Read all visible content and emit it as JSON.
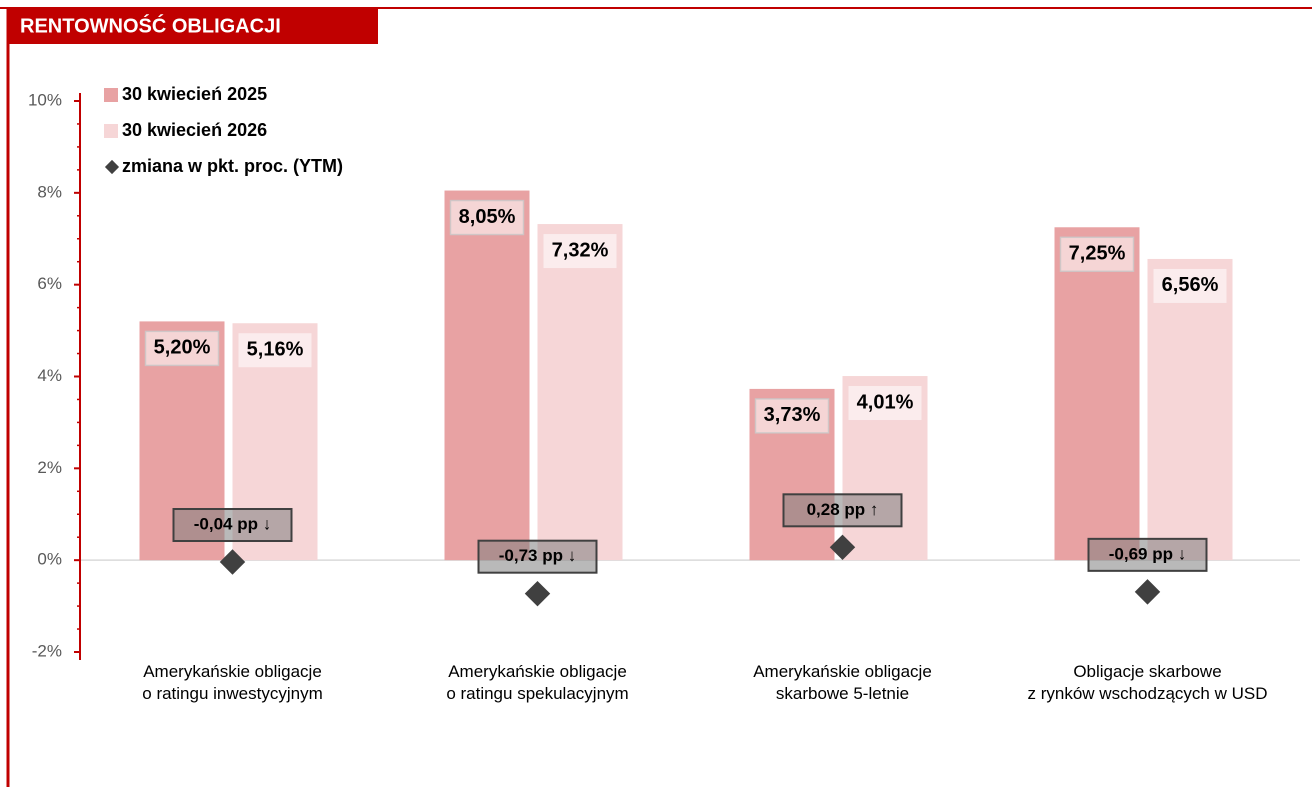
{
  "chart_data": {
    "type": "bar",
    "title": "RENTOWNOŚĆ OBLIGACJI",
    "categories": [
      [
        "Amerykańskie obligacje",
        "o ratingu inwestycyjnym"
      ],
      [
        "Amerykańskie obligacje",
        "o ratingu spekulacyjnym"
      ],
      [
        "Amerykańskie obligacje",
        "skarbowe 5-letnie"
      ],
      [
        "Obligacje skarbowe",
        "z rynków wschodzących w USD"
      ]
    ],
    "series": [
      {
        "name": "30 kwiecień 2025",
        "color": "#e8a2a3",
        "values": [
          5.2,
          8.05,
          3.73,
          7.25
        ],
        "value_labels": [
          "5,20%",
          "8,05%",
          "3,73%",
          "7,25%"
        ]
      },
      {
        "name": "30 kwiecień 2026",
        "color": "#f6d6d7",
        "values": [
          5.16,
          7.32,
          4.01,
          6.56
        ],
        "value_labels": [
          "5,16%",
          "7,32%",
          "4,01%",
          "6,56%"
        ]
      },
      {
        "name": "zmiana w pkt. proc. (YTM)",
        "type": "scatter",
        "color": "#404040",
        "values": [
          -0.04,
          -0.73,
          0.28,
          -0.69
        ],
        "value_labels": [
          "-0,04 pp ↓",
          "-0,73 pp ↓",
          "0,28 pp ↑",
          "-0,69 pp ↓"
        ]
      }
    ],
    "ylim": [
      -2,
      10
    ],
    "yticks": [
      {
        "value": -2,
        "label": "-2%"
      },
      {
        "value": 0,
        "label": "0%"
      },
      {
        "value": 2,
        "label": "2%"
      },
      {
        "value": 4,
        "label": "4%"
      },
      {
        "value": 6,
        "label": "6%"
      },
      {
        "value": 8,
        "label": "8%"
      },
      {
        "value": 10,
        "label": "10%"
      }
    ],
    "legend": "top-left"
  }
}
